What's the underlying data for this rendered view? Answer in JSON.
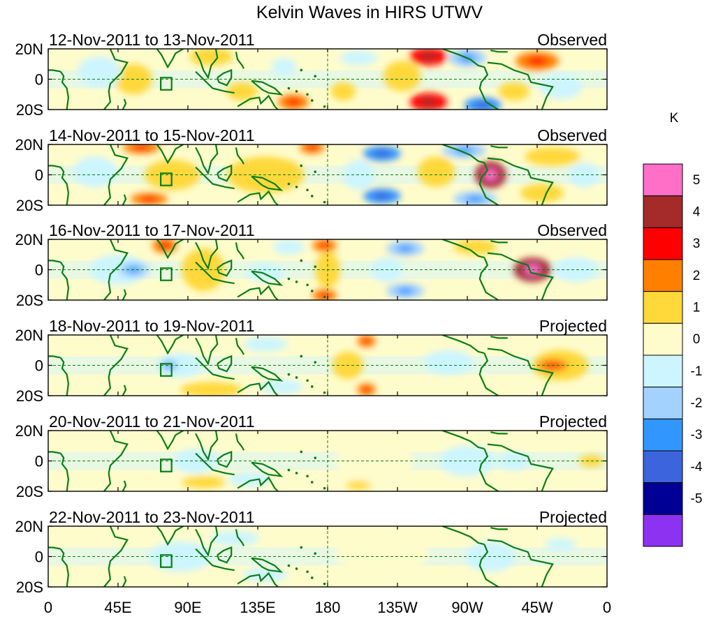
{
  "chart_data": {
    "type": "heatmap",
    "title": "Kelvin Waves in HIRS UTWV",
    "units_label": "K",
    "x_ticks": [
      "0",
      "45E",
      "90E",
      "135E",
      "180",
      "135W",
      "90W",
      "45W",
      "0"
    ],
    "y_ticks": [
      "20N",
      "0",
      "20S"
    ],
    "x_range_deg": [
      0,
      360
    ],
    "y_range_deg": [
      -20,
      20
    ],
    "colorbar": {
      "labels": [
        "5",
        "4",
        "3",
        "2",
        "1",
        "0",
        "-1",
        "-2",
        "-3",
        "-4",
        "-5"
      ],
      "colors": [
        "#ff6ec7",
        "#a52a2a",
        "#ff0000",
        "#ff7f00",
        "#ffd83a",
        "#fffccc",
        "#ccf5ff",
        "#a3d2ff",
        "#3296ff",
        "#3c64dc",
        "#000096",
        "#8c32f0"
      ]
    },
    "panels": [
      {
        "date": "12-Nov-2011 to 13-Nov-2011",
        "kind": "Observed",
        "anomalies": [
          {
            "lon": 105,
            "lat": 15,
            "value": 1,
            "rx": 14,
            "ry": 6
          },
          {
            "lon": 55,
            "lat": 0,
            "value": 1,
            "rx": 12,
            "ry": 10
          },
          {
            "lon": 125,
            "lat": -8,
            "value": 1,
            "rx": 10,
            "ry": 6
          },
          {
            "lon": 158,
            "lat": -15,
            "value": 2,
            "rx": 10,
            "ry": 5
          },
          {
            "lon": 33,
            "lat": 5,
            "value": -1,
            "rx": 14,
            "ry": 10
          },
          {
            "lon": 152,
            "lat": 8,
            "value": -1,
            "rx": 8,
            "ry": 6
          },
          {
            "lon": 200,
            "lat": 14,
            "value": -1,
            "rx": 12,
            "ry": 5
          },
          {
            "lon": 190,
            "lat": -8,
            "value": 1,
            "rx": 8,
            "ry": 6
          },
          {
            "lon": 245,
            "lat": 15,
            "value": 3,
            "rx": 12,
            "ry": 6
          },
          {
            "lon": 245,
            "lat": -15,
            "value": 3,
            "rx": 12,
            "ry": 6
          },
          {
            "lon": 228,
            "lat": 2,
            "value": 1,
            "rx": 12,
            "ry": 10
          },
          {
            "lon": 270,
            "lat": 14,
            "value": -2,
            "rx": 12,
            "ry": 6
          },
          {
            "lon": 280,
            "lat": -17,
            "value": -3,
            "rx": 12,
            "ry": 5
          },
          {
            "lon": 315,
            "lat": 12,
            "value": 2,
            "rx": 14,
            "ry": 6
          },
          {
            "lon": 330,
            "lat": -5,
            "value": -1,
            "rx": 14,
            "ry": 8
          },
          {
            "lon": 300,
            "lat": -8,
            "value": 1,
            "rx": 10,
            "ry": 6
          }
        ]
      },
      {
        "date": "14-Nov-2011 to 15-Nov-2011",
        "kind": "Observed",
        "anomalies": [
          {
            "lon": 60,
            "lat": 18,
            "value": 2,
            "rx": 12,
            "ry": 4
          },
          {
            "lon": 80,
            "lat": 0,
            "value": 1,
            "rx": 18,
            "ry": 10
          },
          {
            "lon": 65,
            "lat": -16,
            "value": 2,
            "rx": 12,
            "ry": 4
          },
          {
            "lon": 140,
            "lat": 0,
            "value": 1,
            "rx": 25,
            "ry": 12
          },
          {
            "lon": 30,
            "lat": 2,
            "value": -1,
            "rx": 14,
            "ry": 10
          },
          {
            "lon": 170,
            "lat": 18,
            "value": 2,
            "rx": 8,
            "ry": 4
          },
          {
            "lon": 200,
            "lat": 0,
            "value": -1,
            "rx": 10,
            "ry": 10
          },
          {
            "lon": 215,
            "lat": 14,
            "value": -3,
            "rx": 12,
            "ry": 5
          },
          {
            "lon": 215,
            "lat": -14,
            "value": -3,
            "rx": 12,
            "ry": 5
          },
          {
            "lon": 250,
            "lat": 2,
            "value": 1,
            "rx": 12,
            "ry": 10
          },
          {
            "lon": 285,
            "lat": 0,
            "value": 4,
            "rx": 10,
            "ry": 9
          },
          {
            "lon": 268,
            "lat": 16,
            "value": -2,
            "rx": 14,
            "ry": 5
          },
          {
            "lon": 275,
            "lat": -16,
            "value": -2,
            "rx": 14,
            "ry": 5
          },
          {
            "lon": 325,
            "lat": 12,
            "value": 1,
            "rx": 18,
            "ry": 6
          },
          {
            "lon": 318,
            "lat": -12,
            "value": 1,
            "rx": 14,
            "ry": 6
          },
          {
            "lon": 345,
            "lat": 0,
            "value": -1,
            "rx": 10,
            "ry": 8
          }
        ]
      },
      {
        "date": "16-Nov-2011 to 17-Nov-2011",
        "kind": "Observed",
        "anomalies": [
          {
            "lon": 75,
            "lat": 16,
            "value": 2,
            "rx": 8,
            "ry": 5
          },
          {
            "lon": 100,
            "lat": 0,
            "value": 1,
            "rx": 14,
            "ry": 14
          },
          {
            "lon": 55,
            "lat": 0,
            "value": -2,
            "rx": 10,
            "ry": 5
          },
          {
            "lon": 45,
            "lat": 0,
            "value": -1,
            "rx": 18,
            "ry": 10
          },
          {
            "lon": 155,
            "lat": 15,
            "value": -1,
            "rx": 10,
            "ry": 5
          },
          {
            "lon": 140,
            "lat": -2,
            "value": -1,
            "rx": 12,
            "ry": 6
          },
          {
            "lon": 178,
            "lat": 16,
            "value": 2,
            "rx": 8,
            "ry": 4
          },
          {
            "lon": 178,
            "lat": -17,
            "value": 2,
            "rx": 8,
            "ry": 4
          },
          {
            "lon": 180,
            "lat": 0,
            "value": 1,
            "rx": 8,
            "ry": 12
          },
          {
            "lon": 218,
            "lat": 0,
            "value": -1,
            "rx": 10,
            "ry": 8
          },
          {
            "lon": 230,
            "lat": 14,
            "value": -2,
            "rx": 12,
            "ry": 5
          },
          {
            "lon": 230,
            "lat": -14,
            "value": -2,
            "rx": 12,
            "ry": 5
          },
          {
            "lon": 275,
            "lat": 15,
            "value": 1,
            "rx": 14,
            "ry": 5
          },
          {
            "lon": 312,
            "lat": 0,
            "value": 4,
            "rx": 12,
            "ry": 8
          },
          {
            "lon": 340,
            "lat": 0,
            "value": -1,
            "rx": 14,
            "ry": 8
          }
        ]
      },
      {
        "date": "18-Nov-2011 to 19-Nov-2011",
        "kind": "Projected",
        "anomalies": [
          {
            "lon": 85,
            "lat": 0,
            "value": -1,
            "rx": 14,
            "ry": 8
          },
          {
            "lon": 78,
            "lat": 0,
            "value": -2,
            "rx": 6,
            "ry": 4
          },
          {
            "lon": 105,
            "lat": -16,
            "value": 1,
            "rx": 20,
            "ry": 5
          },
          {
            "lon": 140,
            "lat": 14,
            "value": -1,
            "rx": 14,
            "ry": 5
          },
          {
            "lon": 150,
            "lat": -14,
            "value": -1,
            "rx": 14,
            "ry": 5
          },
          {
            "lon": 193,
            "lat": 0,
            "value": 1,
            "rx": 10,
            "ry": 9
          },
          {
            "lon": 205,
            "lat": 16,
            "value": 2,
            "rx": 6,
            "ry": 4
          },
          {
            "lon": 205,
            "lat": -16,
            "value": 2,
            "rx": 6,
            "ry": 4
          },
          {
            "lon": 258,
            "lat": 2,
            "value": -1,
            "rx": 16,
            "ry": 8
          },
          {
            "lon": 325,
            "lat": 0,
            "value": 2,
            "rx": 10,
            "ry": 4
          },
          {
            "lon": 330,
            "lat": 0,
            "value": 1,
            "rx": 18,
            "ry": 10
          }
        ]
      },
      {
        "date": "20-Nov-2011 to 21-Nov-2011",
        "kind": "Projected",
        "anomalies": [
          {
            "lon": 95,
            "lat": 0,
            "value": -1,
            "rx": 14,
            "ry": 8
          },
          {
            "lon": 100,
            "lat": -14,
            "value": 1,
            "rx": 14,
            "ry": 4
          },
          {
            "lon": 130,
            "lat": -12,
            "value": -1,
            "rx": 14,
            "ry": 5
          },
          {
            "lon": 210,
            "lat": 0,
            "value": 0,
            "rx": 25,
            "ry": 14
          },
          {
            "lon": 200,
            "lat": -16,
            "value": 1,
            "rx": 8,
            "ry": 3
          },
          {
            "lon": 270,
            "lat": 0,
            "value": -1,
            "rx": 18,
            "ry": 10
          },
          {
            "lon": 350,
            "lat": 0,
            "value": 1,
            "rx": 8,
            "ry": 4
          },
          {
            "lon": 300,
            "lat": 0,
            "value": -1,
            "rx": 10,
            "ry": 6
          }
        ]
      },
      {
        "date": "22-Nov-2011 to 23-Nov-2011",
        "kind": "Projected",
        "anomalies": [
          {
            "lon": 85,
            "lat": 0,
            "value": -1,
            "rx": 20,
            "ry": 10
          },
          {
            "lon": 120,
            "lat": 12,
            "value": -1,
            "rx": 16,
            "ry": 5
          },
          {
            "lon": 140,
            "lat": -12,
            "value": -1,
            "rx": 14,
            "ry": 5
          },
          {
            "lon": 215,
            "lat": 2,
            "value": 0,
            "rx": 30,
            "ry": 14
          },
          {
            "lon": 285,
            "lat": 0,
            "value": -1,
            "rx": 16,
            "ry": 10
          },
          {
            "lon": 330,
            "lat": 8,
            "value": -1,
            "rx": 10,
            "ry": 4
          }
        ]
      }
    ]
  }
}
